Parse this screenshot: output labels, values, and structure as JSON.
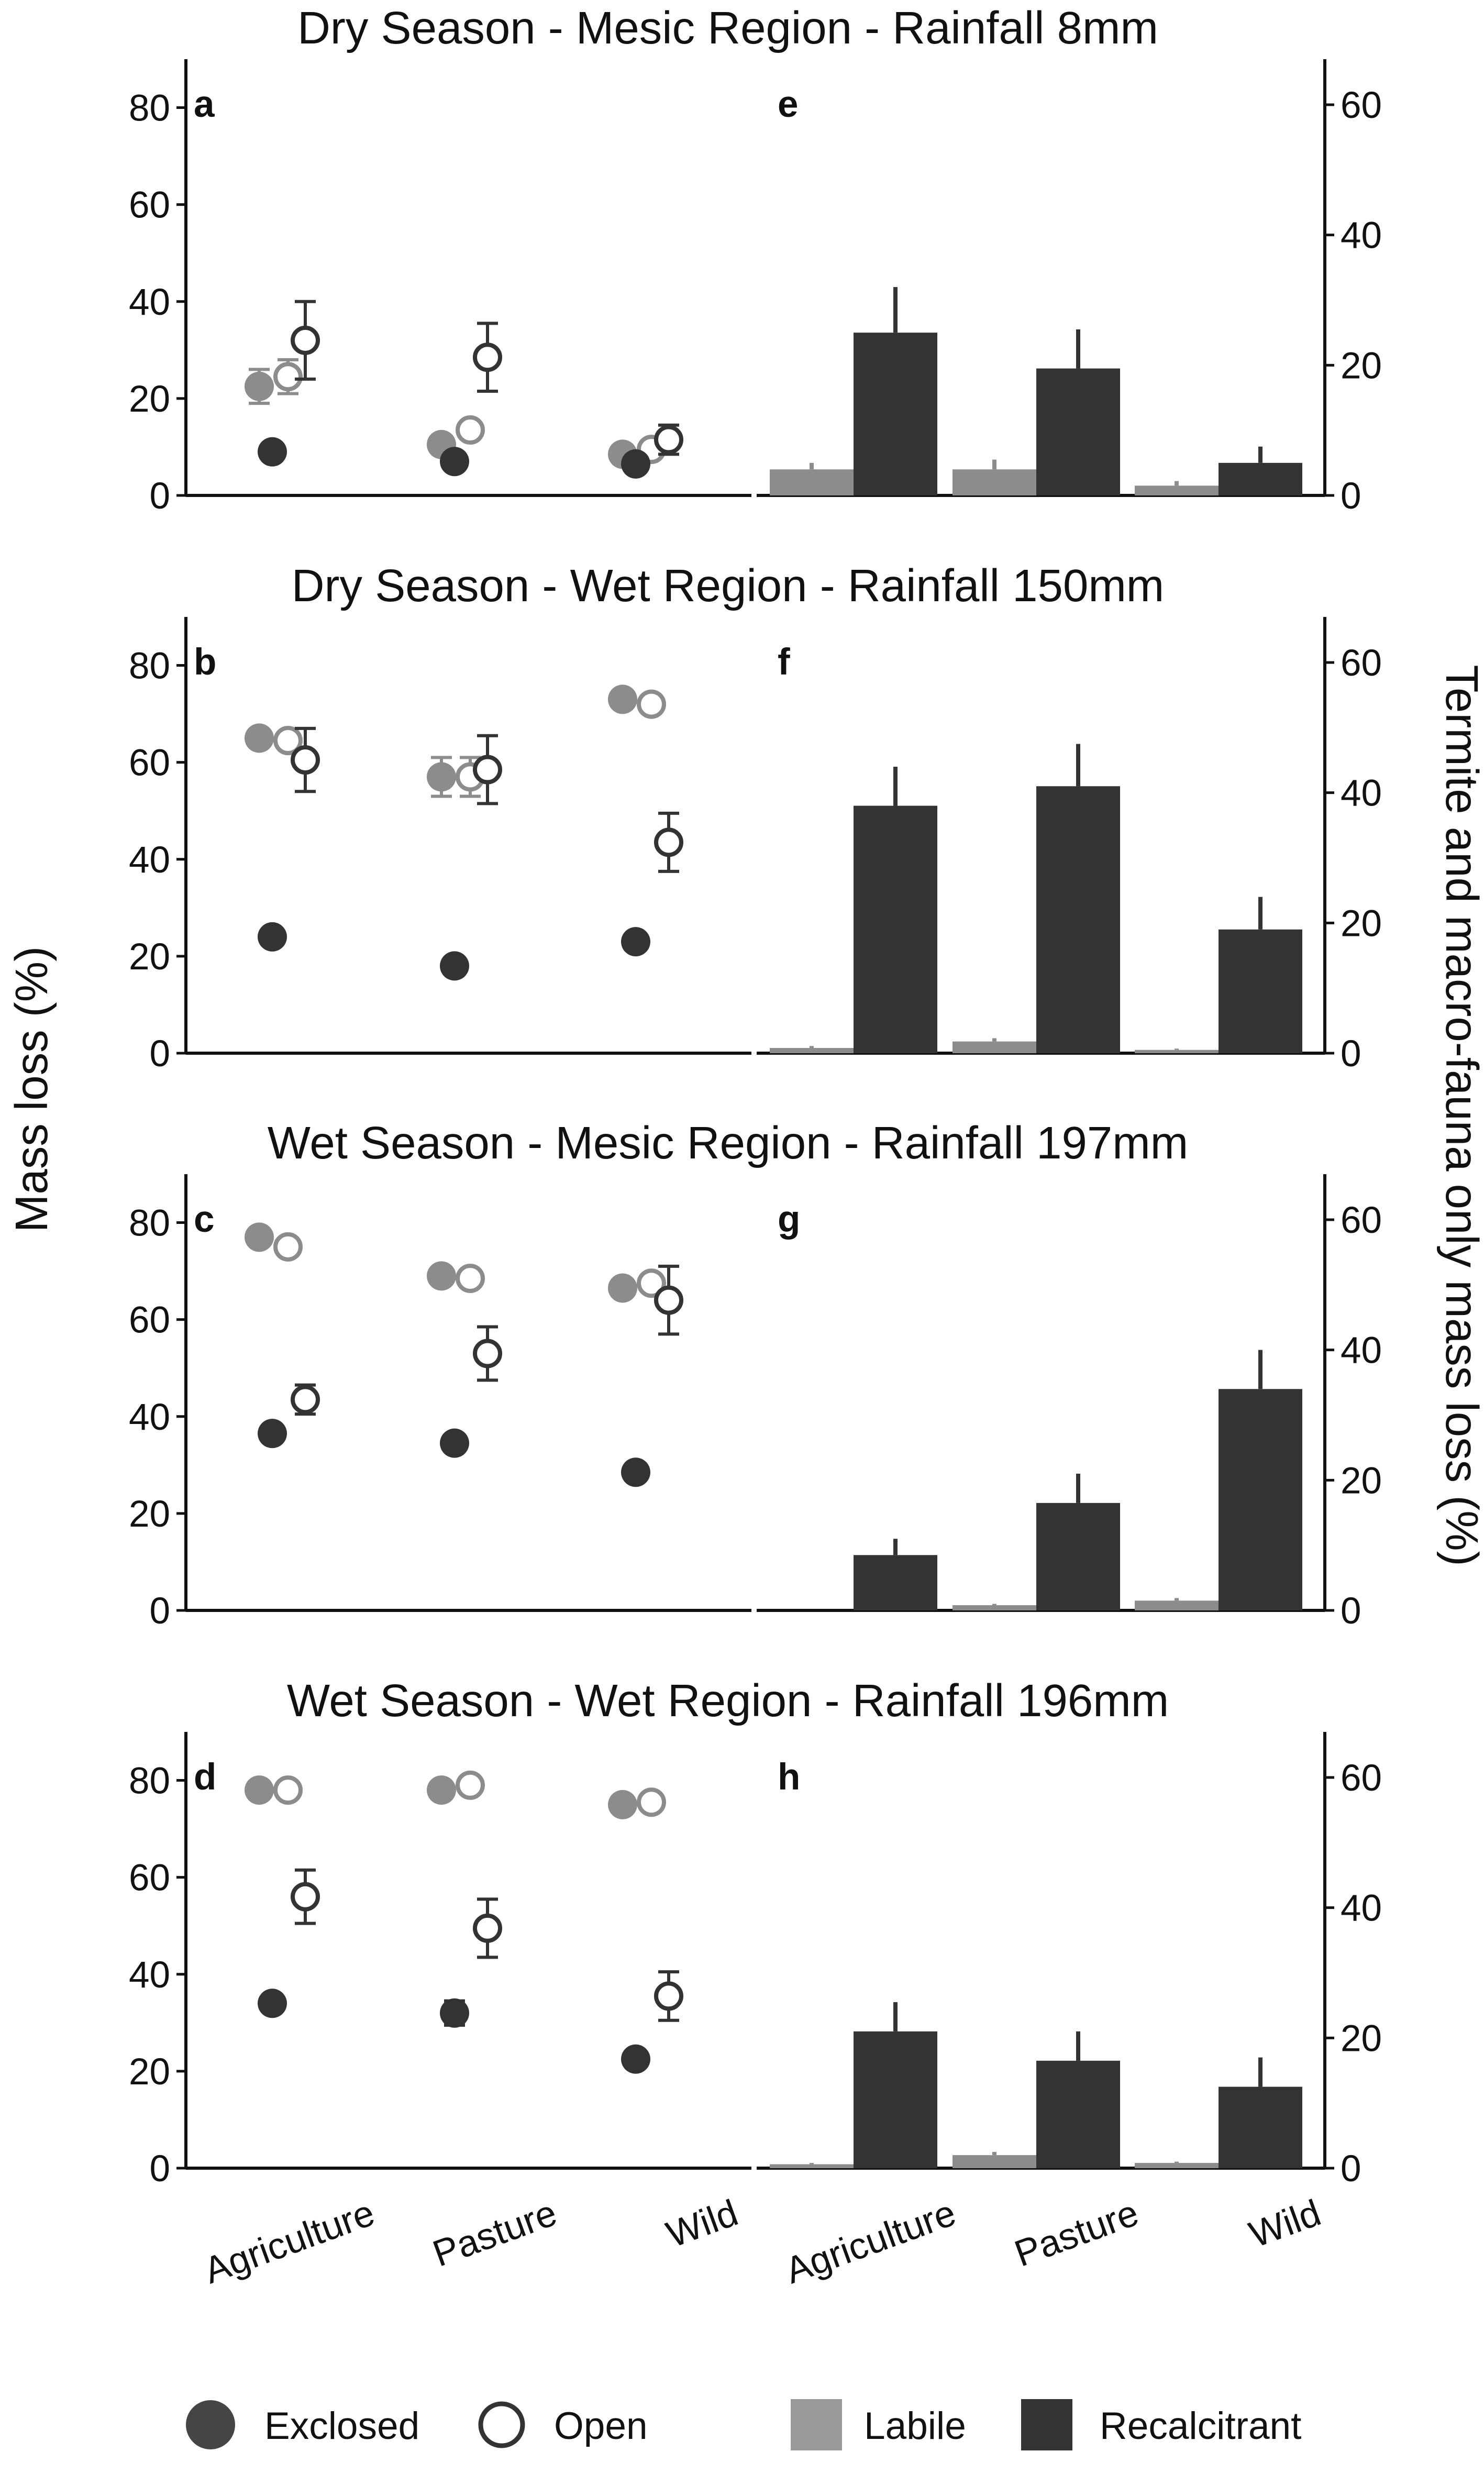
{
  "chart_data": {
    "type": "composite",
    "left_type": "scatter",
    "right_type": "bar",
    "categories": [
      "Agriculture",
      "Pasture",
      "Wild"
    ],
    "left_axis": {
      "label": "Mass loss (%)",
      "ylim": [
        0,
        90
      ],
      "ticks": [
        0,
        20,
        40,
        60,
        80
      ]
    },
    "right_axis": {
      "label": "Termite and macro-fauna only mass loss (%)",
      "ylim": [
        0,
        67
      ],
      "ticks": [
        0,
        20,
        40,
        60
      ]
    },
    "grid": false,
    "legend": {
      "position": "bottom",
      "items": [
        {
          "label": "Exclosed",
          "marker": "filled-circle"
        },
        {
          "label": "Open",
          "marker": "open-circle"
        },
        {
          "label": "Labile",
          "marker": "square",
          "color": "#999999"
        },
        {
          "label": "Recalcitrant",
          "marker": "square",
          "color": "#333333"
        }
      ]
    },
    "colors": {
      "labile": "#8c8c8c",
      "recalcitrant": "#333333",
      "labile_legend": "#999999"
    },
    "rows": [
      {
        "title": "Dry Season - Mesic Region - Rainfall 8mm",
        "left_letter": "a",
        "right_letter": "e",
        "left": {
          "labile_exclosed": [
            22.5,
            10.5,
            8.5
          ],
          "labile_exclosed_err": [
            3.5,
            1.5,
            1.0
          ],
          "labile_open": [
            24.5,
            13.5,
            9.5
          ],
          "labile_open_err": [
            3.5,
            1.5,
            1.0
          ],
          "recalcitrant_exclosed": [
            9.0,
            7.0,
            6.5
          ],
          "recalcitrant_exclosed_err": [
            1.0,
            1.0,
            1.0
          ],
          "recalcitrant_open": [
            32.0,
            28.5,
            11.5
          ],
          "recalcitrant_open_err": [
            8.0,
            7.0,
            3.0
          ]
        },
        "right": {
          "labile": [
            4.0,
            4.0,
            1.5
          ],
          "labile_err": [
            1.0,
            1.5,
            0.7
          ],
          "recalcitrant": [
            25.0,
            19.5,
            5.0
          ],
          "recalcitrant_err": [
            7.0,
            6.0,
            2.5
          ]
        }
      },
      {
        "title": "Dry Season - Wet Region - Rainfall 150mm",
        "left_letter": "b",
        "right_letter": "f",
        "left": {
          "labile_exclosed": [
            65.0,
            57.0,
            73.0
          ],
          "labile_exclosed_err": [
            1.5,
            4.0,
            1.0
          ],
          "labile_open": [
            64.5,
            57.0,
            72.0
          ],
          "labile_open_err": [
            1.5,
            4.0,
            1.0
          ],
          "recalcitrant_exclosed": [
            24.0,
            18.0,
            23.0
          ],
          "recalcitrant_exclosed_err": [
            1.0,
            1.0,
            1.0
          ],
          "recalcitrant_open": [
            60.5,
            58.5,
            43.5
          ],
          "recalcitrant_open_err": [
            6.5,
            7.0,
            6.0
          ]
        },
        "right": {
          "labile": [
            0.8,
            1.8,
            0.5
          ],
          "labile_err": [
            0.3,
            0.5,
            0.2
          ],
          "recalcitrant": [
            38.0,
            41.0,
            19.0
          ],
          "recalcitrant_err": [
            6.0,
            6.5,
            5.0
          ]
        }
      },
      {
        "title": "Wet Season - Mesic Region - Rainfall 197mm",
        "left_letter": "c",
        "right_letter": "g",
        "left": {
          "labile_exclosed": [
            77.0,
            69.0,
            66.5
          ],
          "labile_exclosed_err": [
            1.0,
            1.0,
            1.0
          ],
          "labile_open": [
            75.0,
            68.5,
            67.5
          ],
          "labile_open_err": [
            1.0,
            1.0,
            1.0
          ],
          "recalcitrant_exclosed": [
            36.5,
            34.5,
            28.5
          ],
          "recalcitrant_exclosed_err": [
            1.0,
            1.0,
            1.0
          ],
          "recalcitrant_open": [
            43.5,
            53.0,
            64.0
          ],
          "recalcitrant_open_err": [
            3.0,
            5.5,
            7.0
          ]
        },
        "right": {
          "labile": [
            0.0,
            0.8,
            1.5
          ],
          "labile_err": [
            0.0,
            0.2,
            0.4
          ],
          "recalcitrant": [
            8.5,
            16.5,
            34.0
          ],
          "recalcitrant_err": [
            2.5,
            4.5,
            6.0
          ]
        }
      },
      {
        "title": "Wet Season - Wet Region - Rainfall 196mm",
        "left_letter": "d",
        "right_letter": "h",
        "left": {
          "labile_exclosed": [
            78.0,
            78.0,
            75.0
          ],
          "labile_exclosed_err": [
            1.0,
            1.0,
            1.0
          ],
          "labile_open": [
            78.0,
            79.0,
            75.5
          ],
          "labile_open_err": [
            1.0,
            1.0,
            1.0
          ],
          "recalcitrant_exclosed": [
            34.0,
            32.0,
            22.5
          ],
          "recalcitrant_exclosed_err": [
            1.0,
            2.5,
            1.0
          ],
          "recalcitrant_open": [
            56.0,
            49.5,
            35.5
          ],
          "recalcitrant_open_err": [
            5.5,
            6.0,
            5.0
          ]
        },
        "right": {
          "labile": [
            0.6,
            2.0,
            0.8
          ],
          "labile_err": [
            0.2,
            0.5,
            0.2
          ],
          "recalcitrant": [
            21.0,
            16.5,
            12.5
          ],
          "recalcitrant_err": [
            4.5,
            4.5,
            4.5
          ]
        }
      }
    ]
  }
}
